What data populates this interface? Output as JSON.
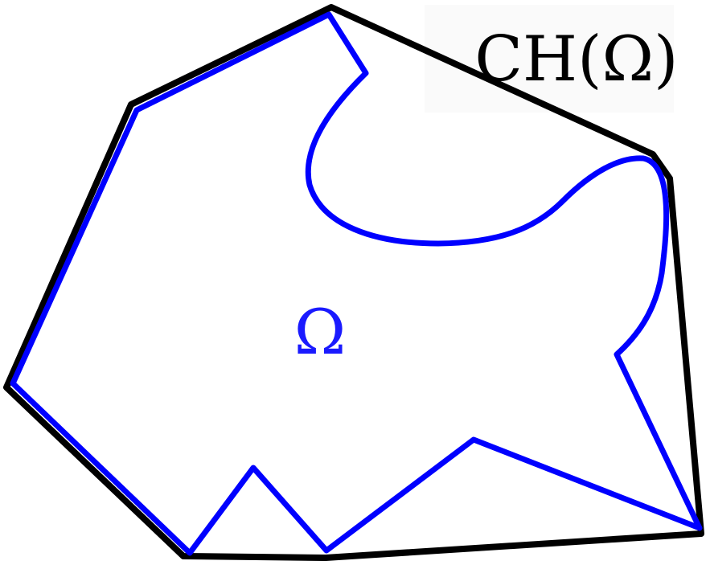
{
  "labels": {
    "convex_hull": "CH(Ω)",
    "domain": "Ω"
  },
  "colors": {
    "background": "#ffffff",
    "hull_stroke": "#000000",
    "domain_stroke": "#0000ff",
    "domain_label": "#1a1aff",
    "hull_label": "#000000"
  },
  "shapes": {
    "convex_hull": "black-convex-polygon",
    "domain": "blue-nonconvex-region"
  }
}
